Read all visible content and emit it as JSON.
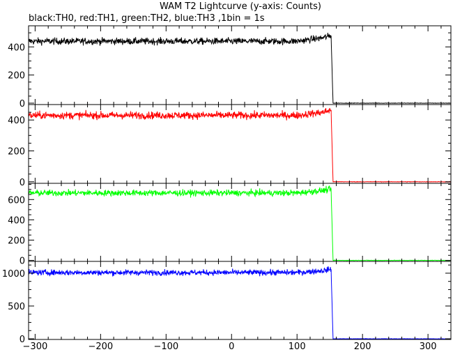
{
  "chart_data": {
    "type": "line",
    "title": "WAM T2 Lightcurve (y-axis: Counts)",
    "subtitle": "black:TH0, red:TH1, green:TH2, blue:TH3 ,1bin = 1s",
    "xlabel": "",
    "ylabel": "",
    "bin_seconds": 1,
    "xlim": [
      -310,
      335
    ],
    "x_ticks": [
      -300,
      -200,
      -100,
      0,
      100,
      200,
      300
    ],
    "x_tick_labels": [
      "−300",
      "−200",
      "−100",
      "0",
      "100",
      "200",
      "300"
    ],
    "grid": false,
    "drop_at_x": 152,
    "panels": [
      {
        "name": "TH0",
        "color": "#000000",
        "ylim": [
          -10,
          550
        ],
        "y_ticks": [
          0,
          200,
          400
        ],
        "y_tick_labels": [
          "0",
          "200",
          "400"
        ],
        "segments": [
          {
            "x": [
              -310,
              100,
              140,
              152
            ],
            "y": [
              440,
              440,
              465,
              480
            ]
          },
          {
            "x": [
              152,
              155
            ],
            "y": [
              480,
              0
            ]
          },
          {
            "x": [
              155,
              335
            ],
            "y": [
              0,
              0
            ]
          }
        ],
        "noise": 22
      },
      {
        "name": "TH1",
        "color": "#ff0000",
        "ylim": [
          -10,
          500
        ],
        "y_ticks": [
          0,
          200,
          400
        ],
        "y_tick_labels": [
          "0",
          "200",
          "400"
        ],
        "segments": [
          {
            "x": [
              -310,
              100,
              140,
              152
            ],
            "y": [
              430,
              430,
              450,
              465
            ]
          },
          {
            "x": [
              152,
              155
            ],
            "y": [
              465,
              0
            ]
          },
          {
            "x": [
              155,
              335
            ],
            "y": [
              0,
              0
            ]
          }
        ],
        "noise": 22
      },
      {
        "name": "TH2",
        "color": "#00ff00",
        "ylim": [
          -10,
          760
        ],
        "y_ticks": [
          0,
          200,
          400,
          600
        ],
        "y_tick_labels": [
          "0",
          "200",
          "400",
          "600"
        ],
        "segments": [
          {
            "x": [
              -310,
              100,
              140,
              152
            ],
            "y": [
              665,
              665,
              690,
              700
            ]
          },
          {
            "x": [
              152,
              155
            ],
            "y": [
              700,
              0
            ]
          },
          {
            "x": [
              155,
              335
            ],
            "y": [
              0,
              0
            ]
          }
        ],
        "noise": 28
      },
      {
        "name": "TH3",
        "color": "#0000ff",
        "ylim": [
          -10,
          1180
        ],
        "y_ticks": [
          0,
          500,
          1000
        ],
        "y_tick_labels": [
          "0",
          "500",
          "1000"
        ],
        "segments": [
          {
            "x": [
              -310,
              100,
              140,
              152
            ],
            "y": [
              1010,
              1010,
              1040,
              1060
            ]
          },
          {
            "x": [
              152,
              155
            ],
            "y": [
              1060,
              0
            ]
          },
          {
            "x": [
              155,
              335
            ],
            "y": [
              0,
              0
            ]
          }
        ],
        "noise": 40
      }
    ]
  }
}
